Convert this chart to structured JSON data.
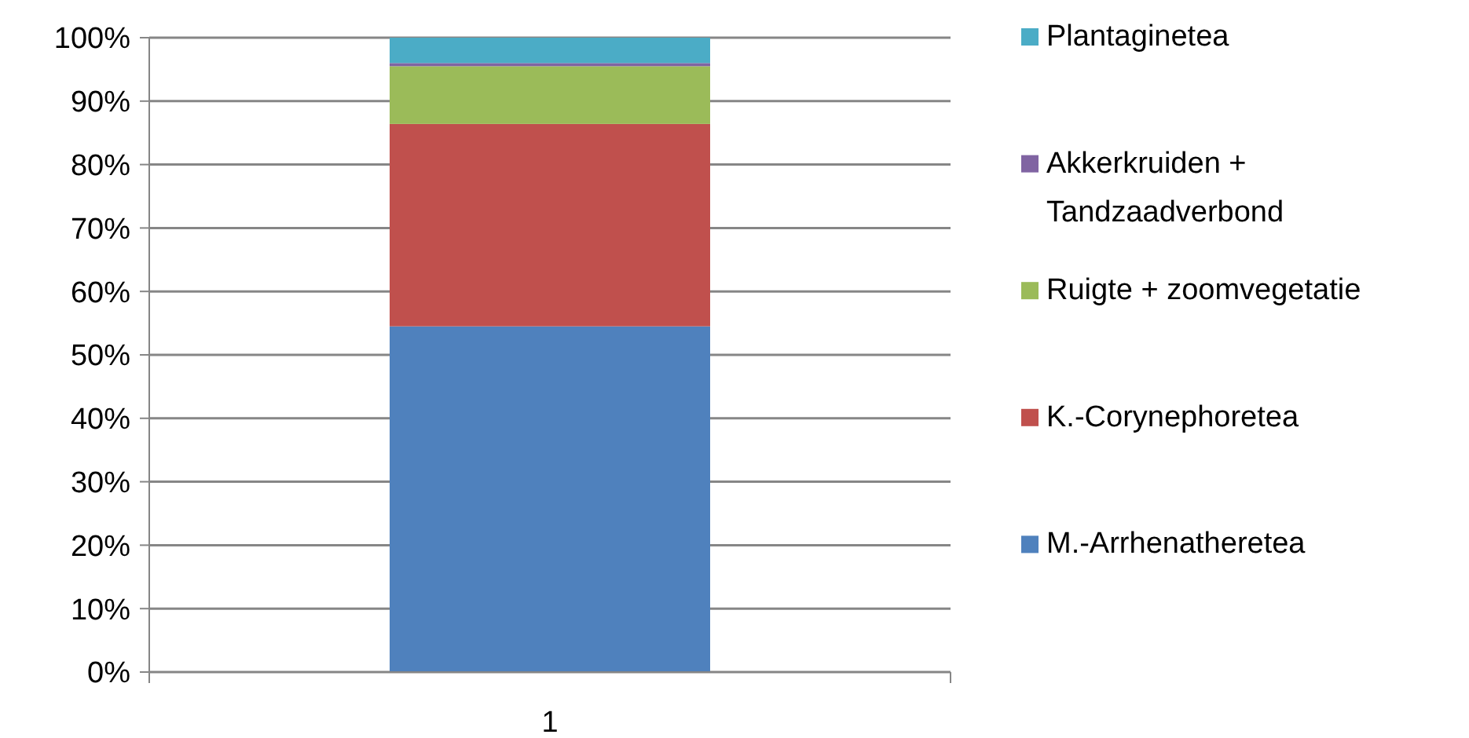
{
  "chart_data": {
    "type": "bar",
    "stacked": true,
    "categories": [
      "1"
    ],
    "series": [
      {
        "name": "M.-Arrhenatheretea",
        "color": "#4f81bd",
        "values": [
          54.5
        ]
      },
      {
        "name": "K.-Corynephoretea",
        "color": "#c0504d",
        "values": [
          31.9
        ]
      },
      {
        "name": "Ruigte + zoomvegetatie",
        "color": "#9bbb59",
        "values": [
          9.1
        ]
      },
      {
        "name": "Akkerkruiden + Tandzaadverbond",
        "color": "#8064a2",
        "values": [
          0.5
        ]
      },
      {
        "name": "Plantaginetea",
        "color": "#4bacc6",
        "values": [
          4.0
        ]
      }
    ],
    "ylim": [
      0,
      100
    ],
    "yticks": [
      {
        "value": 0,
        "label": "0%"
      },
      {
        "value": 10,
        "label": "10%"
      },
      {
        "value": 20,
        "label": "20%"
      },
      {
        "value": 30,
        "label": "30%"
      },
      {
        "value": 40,
        "label": "40%"
      },
      {
        "value": 50,
        "label": "50%"
      },
      {
        "value": 60,
        "label": "60%"
      },
      {
        "value": 70,
        "label": "70%"
      },
      {
        "value": 80,
        "label": "80%"
      },
      {
        "value": 90,
        "label": "90%"
      },
      {
        "value": 100,
        "label": "100%"
      }
    ],
    "grid": "y",
    "legend": "right"
  }
}
